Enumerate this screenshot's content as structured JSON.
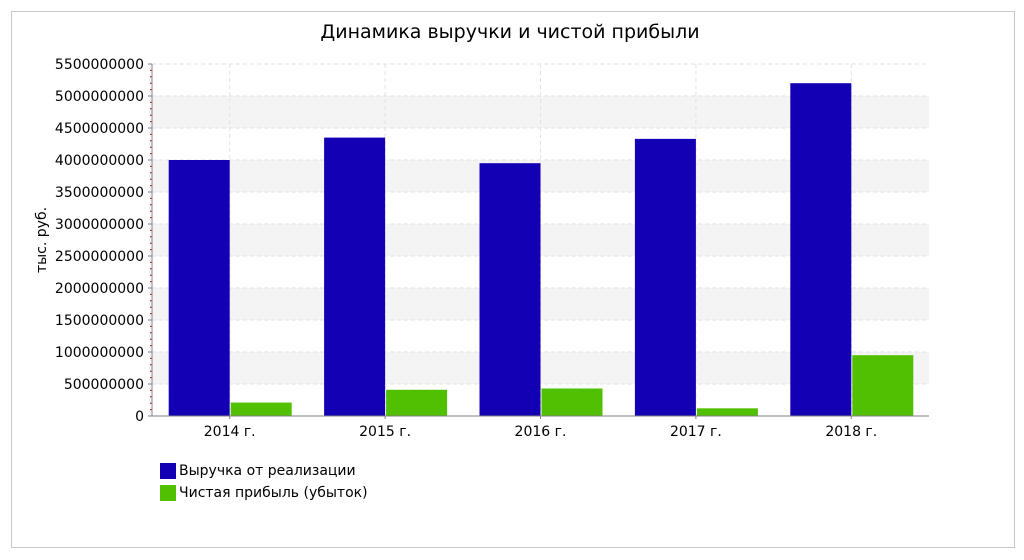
{
  "chart_data": {
    "type": "bar",
    "title": "Динамика выручки и чистой прибыли",
    "ylabel": "тыс. руб.",
    "xlabel": "",
    "categories": [
      "2014 г.",
      "2015 г.",
      "2016 г.",
      "2017 г.",
      "2018 г."
    ],
    "ylim": [
      0,
      5500000000
    ],
    "ytick_step": 500000000,
    "yticks": [
      "0",
      "500000000",
      "1000000000",
      "1500000000",
      "2000000000",
      "2500000000",
      "3000000000",
      "3500000000",
      "4000000000",
      "4500000000",
      "5000000000",
      "5500000000"
    ],
    "grid": true,
    "legend_position": "bottom-left",
    "series": [
      {
        "name": "Выручка от реализации",
        "color": "#1400b4",
        "values": [
          4000000000,
          4350000000,
          3950000000,
          4330000000,
          5200000000
        ]
      },
      {
        "name": "Чистая прибыль (убыток)",
        "color": "#50c000",
        "values": [
          210000000,
          410000000,
          430000000,
          120000000,
          950000000
        ]
      }
    ]
  }
}
